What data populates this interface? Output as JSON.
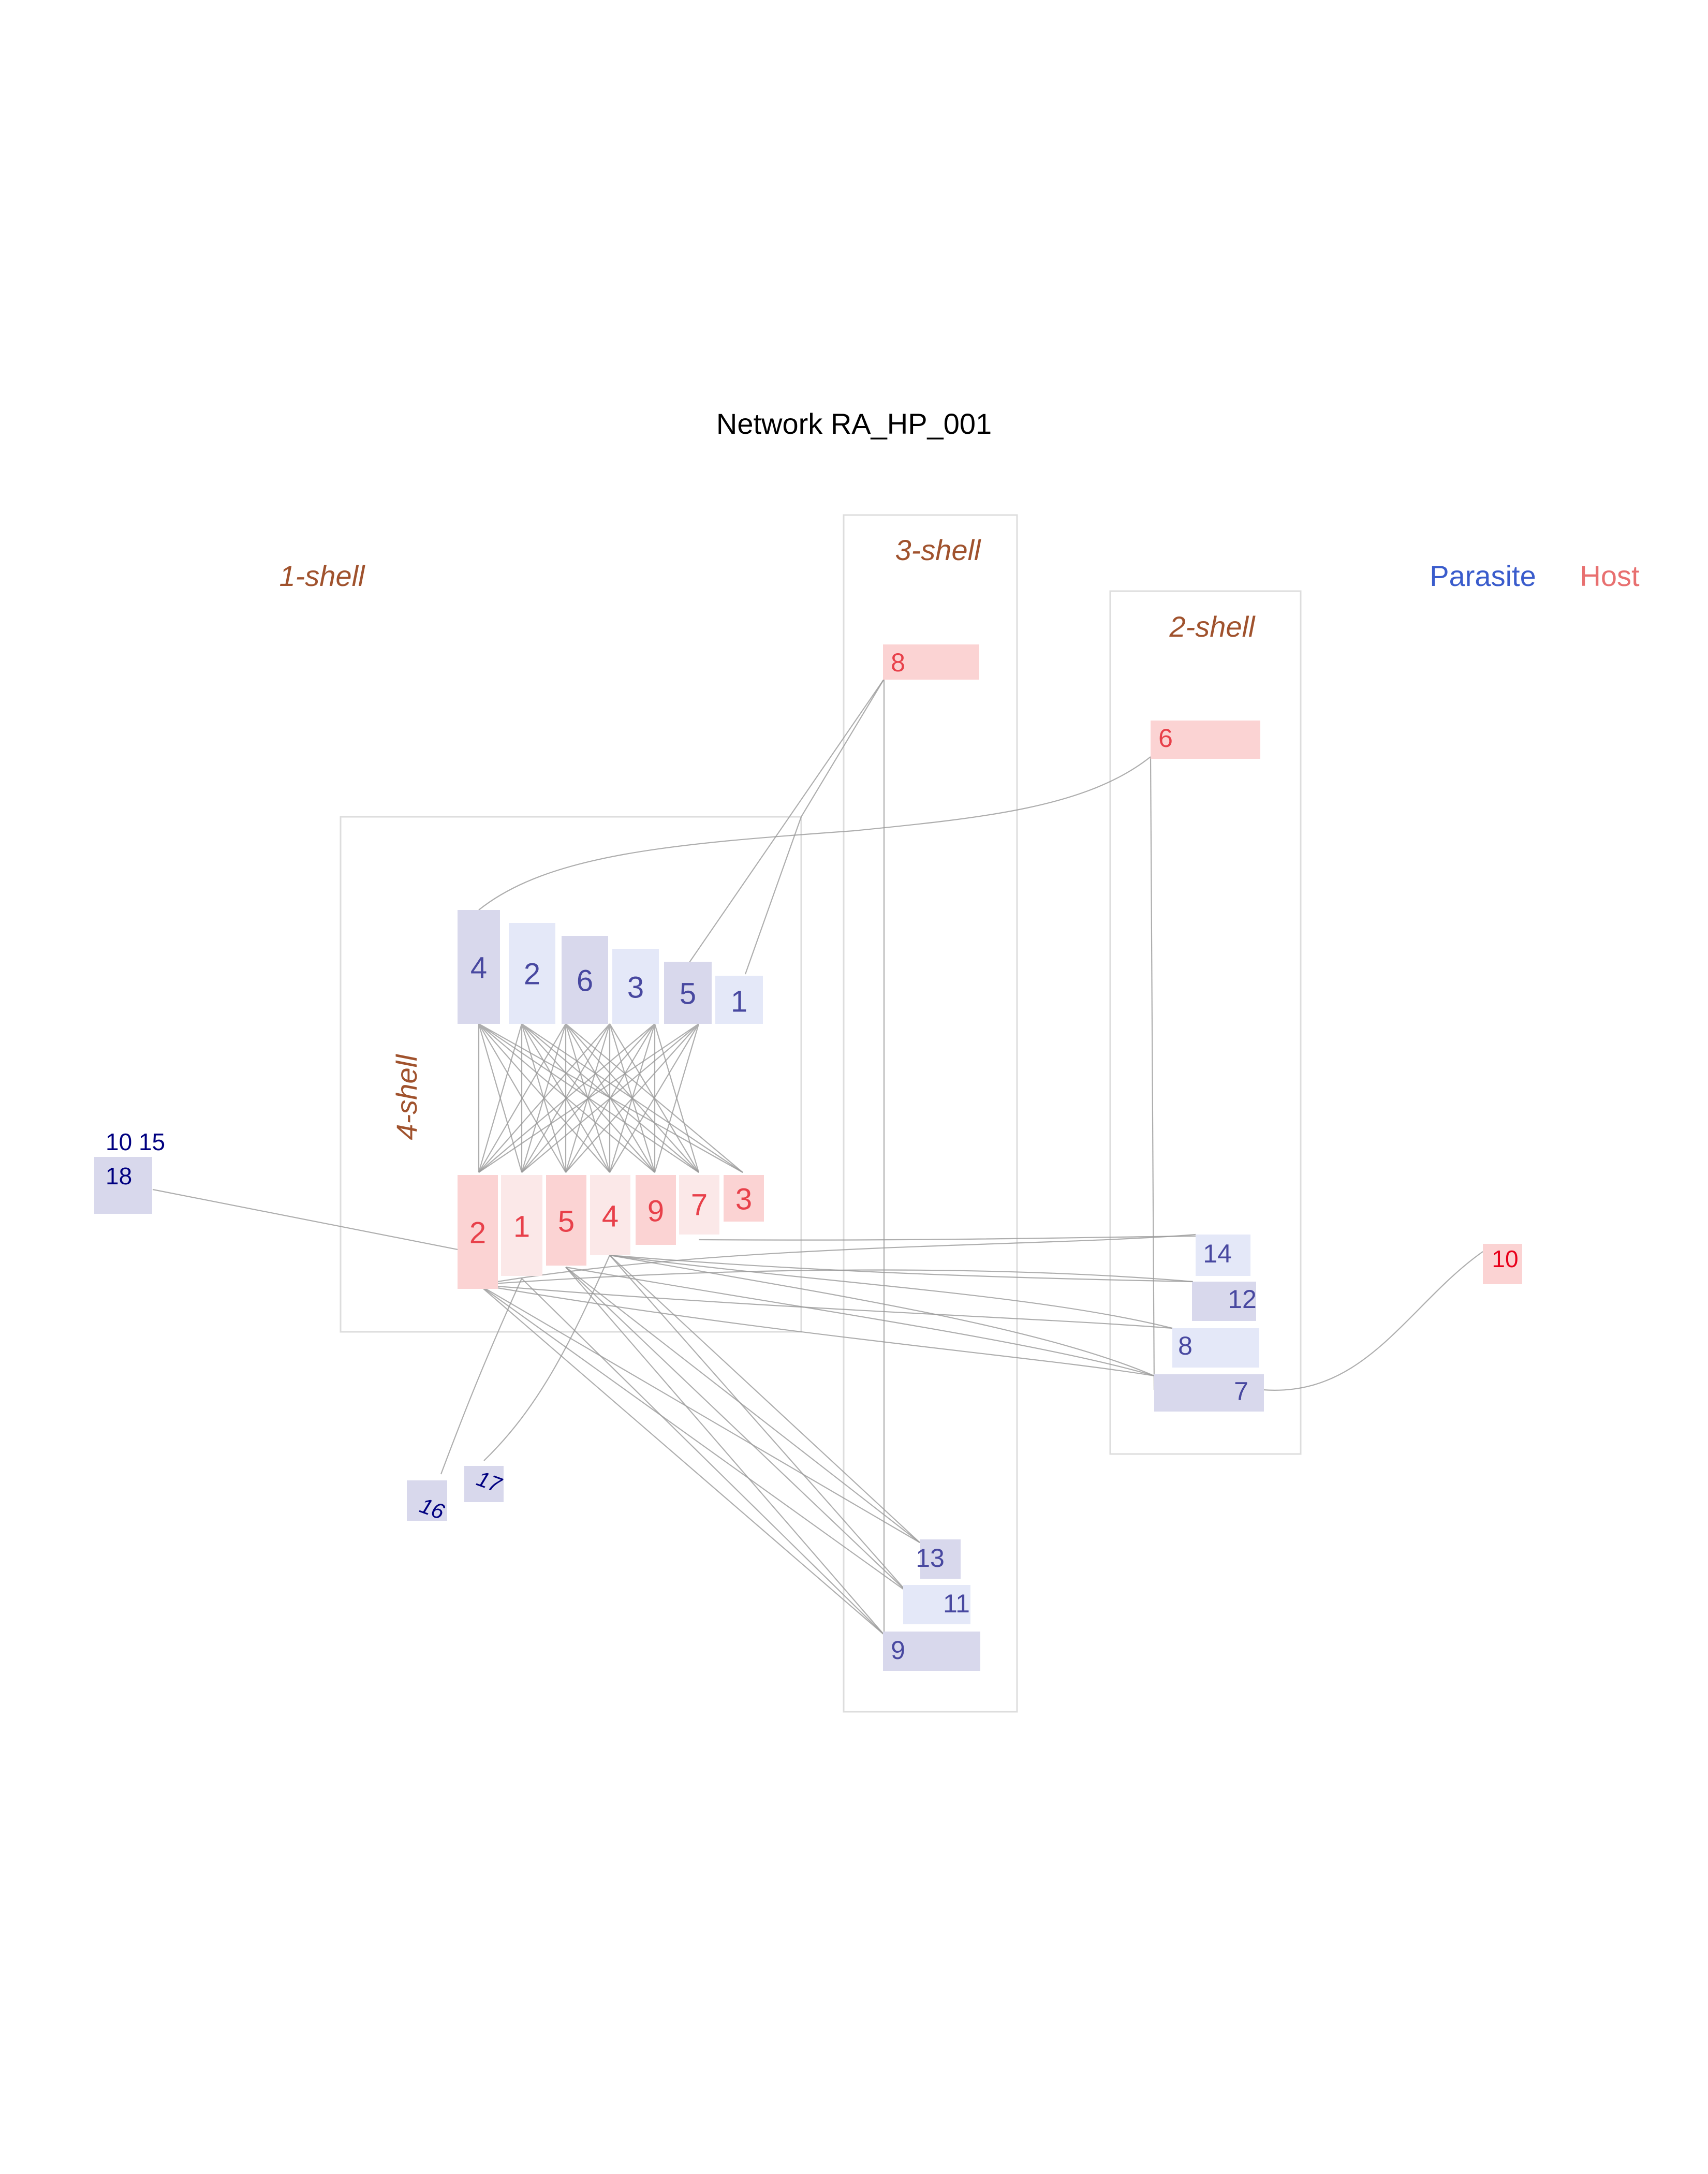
{
  "title": "Network RA_HP_001",
  "legend": {
    "parasite": "Parasite",
    "host": "Host",
    "parasite_color": "#3a5ccc",
    "host_color": "#e87070"
  },
  "shells": {
    "s1": "1-shell",
    "s2": "2-shell",
    "s3": "3-shell",
    "s4": "4-shell"
  },
  "colors": {
    "parasite_fill_dark": "#d8d8ec",
    "parasite_fill_light": "#e4e8f8",
    "parasite_text": "#4848a0",
    "host_fill_dark": "#fbd3d3",
    "host_fill_light": "#fbe8e8",
    "host_text": "#e8404a"
  },
  "isolated": {
    "label_a": "10 15",
    "label_18": "18",
    "label_16": "16",
    "label_17": "17"
  },
  "nodes": {
    "p4": "4",
    "p2": "2",
    "p6": "6",
    "p3": "3",
    "p5": "5",
    "p1": "1",
    "h2": "2",
    "h1": "1",
    "h5": "5",
    "h4": "4",
    "h9": "9",
    "h7": "7",
    "h3": "3",
    "h8": "8",
    "h6": "6",
    "h10": "10",
    "p14": "14",
    "p12": "12",
    "p8": "8",
    "p7": "7",
    "p13": "13",
    "p11": "11",
    "p9": "9"
  }
}
